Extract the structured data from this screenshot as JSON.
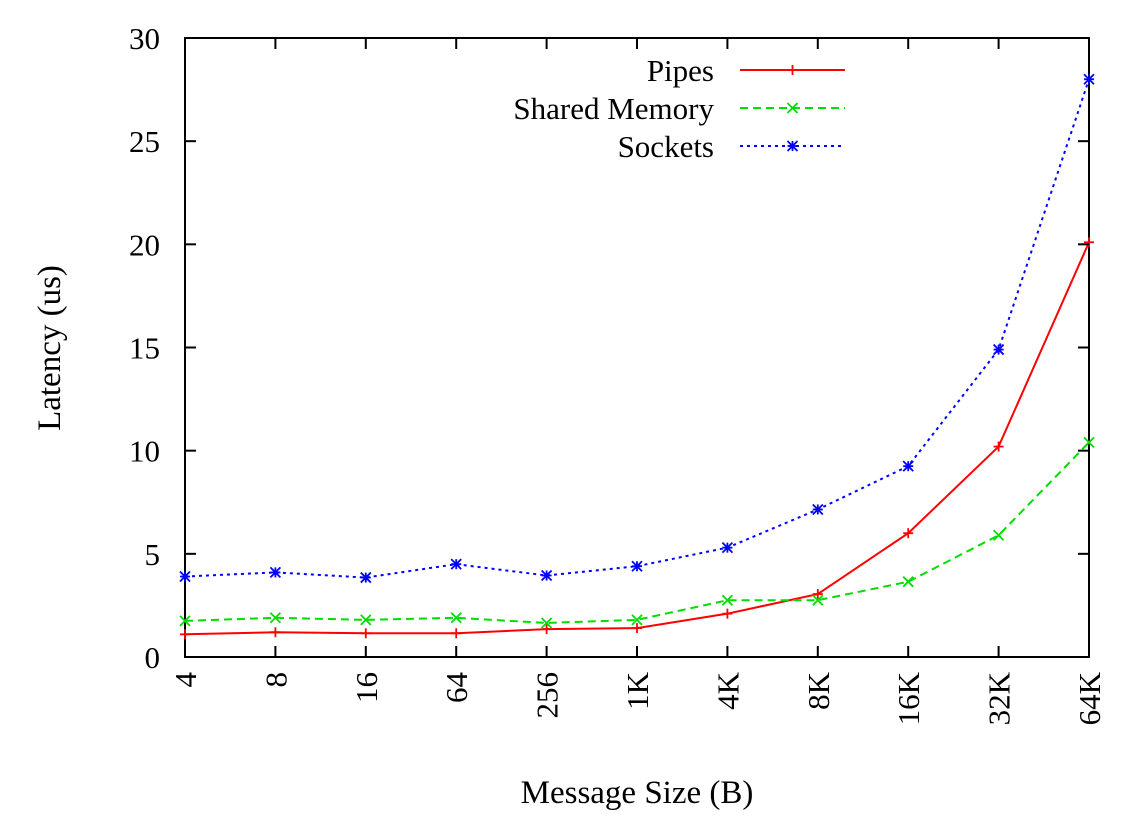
{
  "chart_data": {
    "type": "line",
    "title": "",
    "xlabel": "Message Size (B)",
    "ylabel": "Latency (us)",
    "categories": [
      "4",
      "8",
      "16",
      "64",
      "256",
      "1K",
      "4K",
      "8K",
      "16K",
      "32K",
      "64K"
    ],
    "ylim": [
      0,
      30
    ],
    "yticks": [
      0,
      5,
      10,
      15,
      20,
      25,
      30
    ],
    "legend_position": "top-right",
    "grid": false,
    "series": [
      {
        "name": "Pipes",
        "color": "#ff0000",
        "line_style": "solid",
        "marker": "plus",
        "values": [
          1.1,
          1.2,
          1.15,
          1.15,
          1.35,
          1.4,
          2.1,
          3.05,
          6.0,
          10.2,
          20.1
        ]
      },
      {
        "name": "Shared Memory",
        "color": "#00dd00",
        "line_style": "dashed",
        "marker": "cross",
        "values": [
          1.75,
          1.9,
          1.8,
          1.9,
          1.65,
          1.8,
          2.75,
          2.75,
          3.65,
          5.9,
          10.4
        ]
      },
      {
        "name": "Sockets",
        "color": "#0000ff",
        "line_style": "dotted",
        "marker": "star",
        "values": [
          3.9,
          4.1,
          3.85,
          4.5,
          3.95,
          4.4,
          5.3,
          7.15,
          9.25,
          14.9,
          28.0
        ]
      }
    ]
  }
}
